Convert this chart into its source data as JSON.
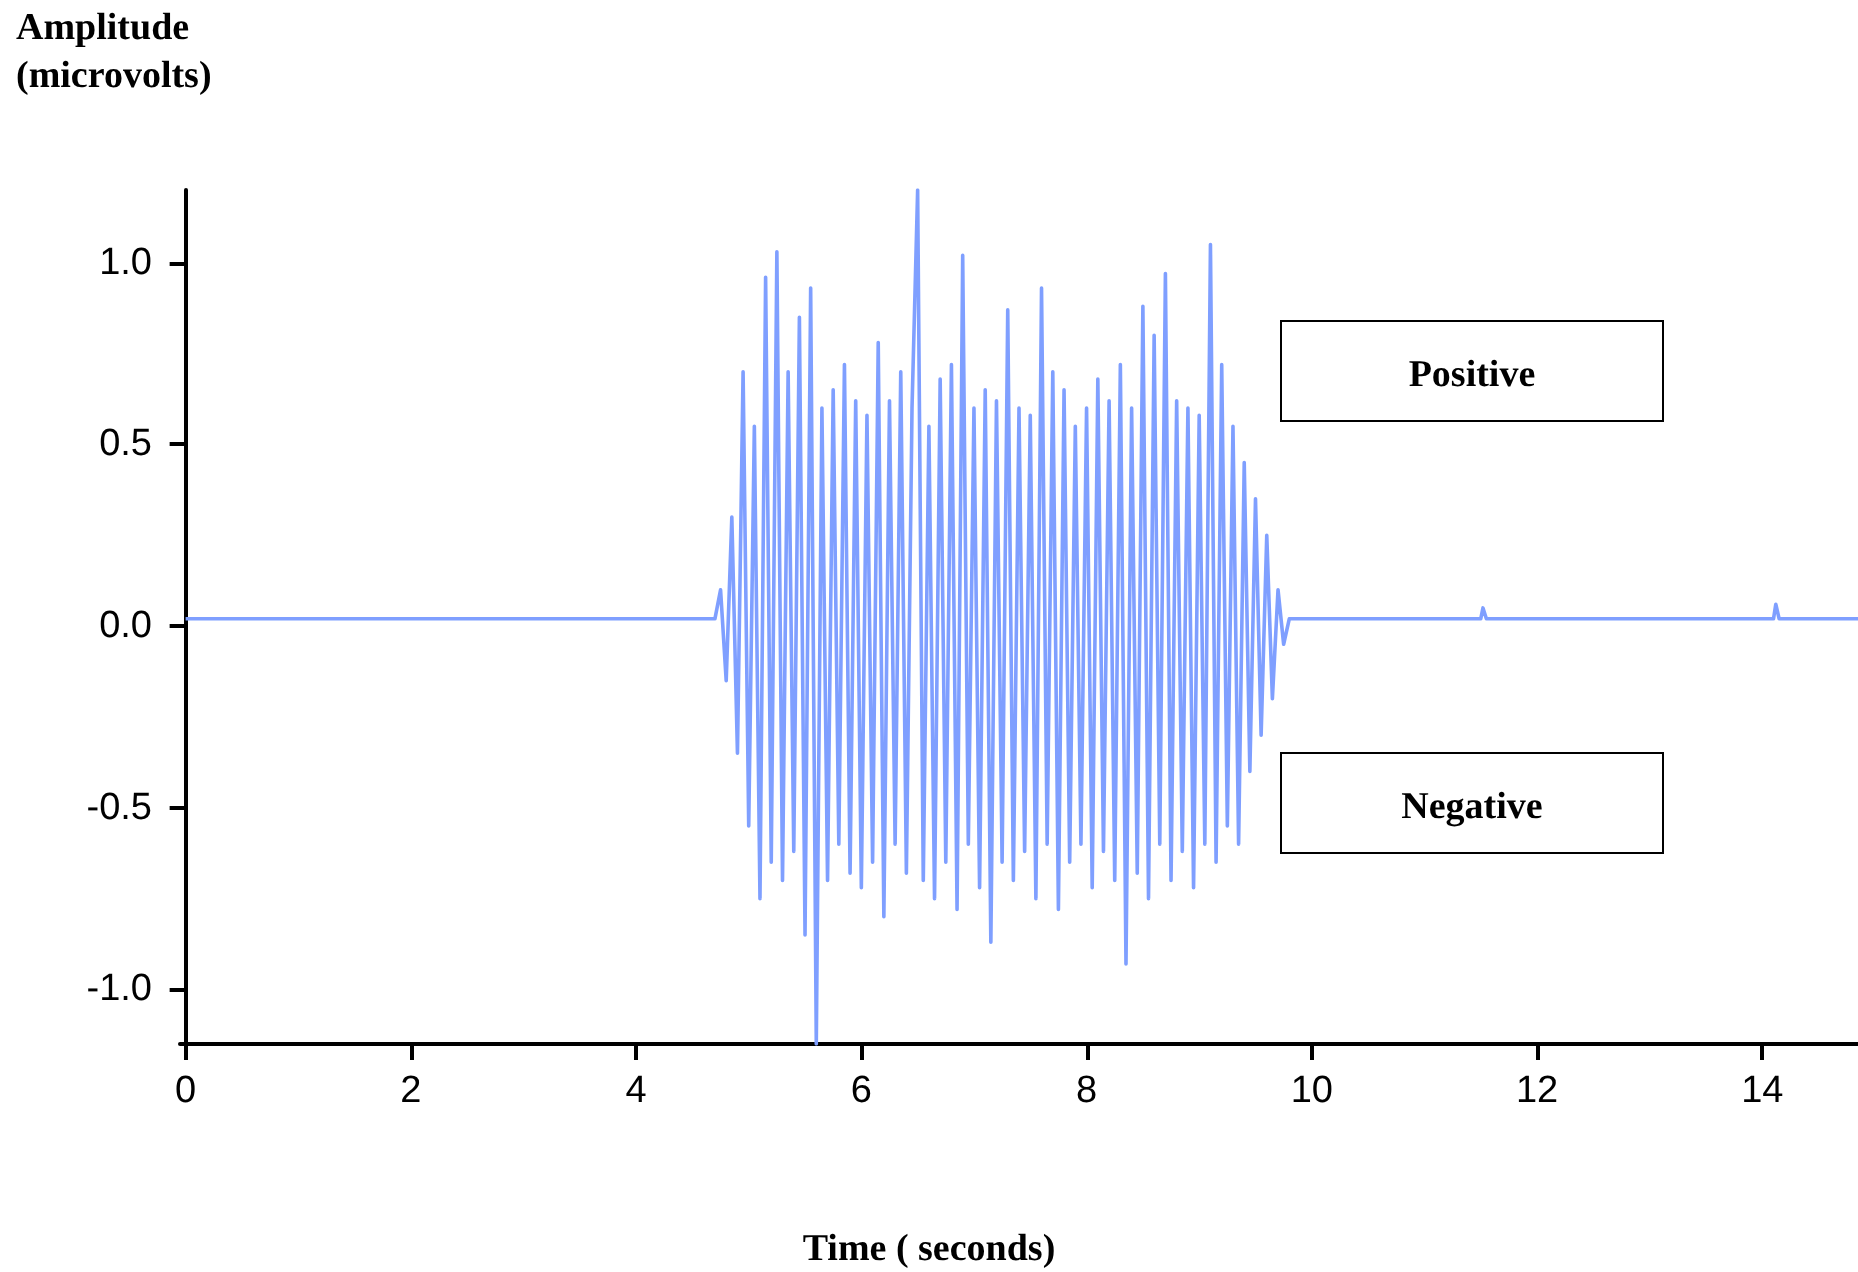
{
  "chart_data": {
    "type": "line",
    "xlabel": "Time ( seconds)",
    "ylabel": "Amplitude (microvolts)",
    "annotations": [
      "Positive",
      "Negative"
    ],
    "x": [
      0,
      4.7,
      4.75,
      4.8,
      4.85,
      4.9,
      4.95,
      5.0,
      5.05,
      5.1,
      5.15,
      5.2,
      5.25,
      5.3,
      5.35,
      5.4,
      5.45,
      5.5,
      5.55,
      5.6,
      5.65,
      5.7,
      5.75,
      5.8,
      5.85,
      5.9,
      5.95,
      6.0,
      6.05,
      6.1,
      6.15,
      6.2,
      6.25,
      6.3,
      6.35,
      6.4,
      6.45,
      6.5,
      6.55,
      6.6,
      6.65,
      6.7,
      6.75,
      6.8,
      6.85,
      6.9,
      6.95,
      7.0,
      7.05,
      7.1,
      7.15,
      7.2,
      7.25,
      7.3,
      7.35,
      7.4,
      7.45,
      7.5,
      7.55,
      7.6,
      7.65,
      7.7,
      7.75,
      7.8,
      7.85,
      7.9,
      7.95,
      8.0,
      8.05,
      8.1,
      8.15,
      8.2,
      8.25,
      8.3,
      8.35,
      8.4,
      8.45,
      8.5,
      8.55,
      8.6,
      8.65,
      8.7,
      8.75,
      8.8,
      8.85,
      8.9,
      8.95,
      9.0,
      9.05,
      9.1,
      9.15,
      9.2,
      9.25,
      9.3,
      9.35,
      9.4,
      9.45,
      9.5,
      9.55,
      9.6,
      9.65,
      9.7,
      9.75,
      9.8,
      11.5,
      11.52,
      11.55,
      14.1,
      14.12,
      14.15,
      14.85
    ],
    "series": [
      {
        "color": "#7f9fff",
        "values": [
          0.02,
          0.02,
          0.1,
          -0.15,
          0.3,
          -0.35,
          0.7,
          -0.55,
          0.55,
          -0.75,
          0.96,
          -0.65,
          1.03,
          -0.7,
          0.7,
          -0.62,
          0.85,
          -0.85,
          0.93,
          -1.15,
          0.6,
          -0.7,
          0.65,
          -0.6,
          0.72,
          -0.68,
          0.62,
          -0.72,
          0.58,
          -0.65,
          0.78,
          -0.8,
          0.62,
          -0.6,
          0.7,
          -0.68,
          0.6,
          1.2,
          -0.7,
          0.55,
          -0.75,
          0.68,
          -0.65,
          0.72,
          -0.78,
          1.02,
          -0.6,
          0.6,
          -0.72,
          0.65,
          -0.87,
          0.62,
          -0.65,
          0.87,
          -0.7,
          0.6,
          -0.62,
          0.58,
          -0.75,
          0.93,
          -0.6,
          0.7,
          -0.78,
          0.65,
          -0.65,
          0.55,
          -0.6,
          0.6,
          -0.72,
          0.68,
          -0.62,
          0.62,
          -0.7,
          0.72,
          -0.93,
          0.6,
          -0.68,
          0.88,
          -0.75,
          0.8,
          -0.6,
          0.97,
          -0.7,
          0.62,
          -0.62,
          0.6,
          -0.72,
          0.58,
          -0.6,
          1.05,
          -0.65,
          0.72,
          -0.55,
          0.55,
          -0.6,
          0.45,
          -0.4,
          0.35,
          -0.3,
          0.25,
          -0.2,
          0.1,
          -0.05,
          0.02,
          0.02,
          0.05,
          0.02,
          0.02,
          0.06,
          0.02,
          0.02
        ]
      }
    ],
    "xlim": [
      -0.05,
      14.85
    ],
    "ylim": [
      -1.15,
      1.2
    ],
    "xticks": [
      0,
      2,
      4,
      6,
      8,
      10,
      12,
      14
    ],
    "yticks": [
      {
        "value": -1,
        "label": "-1.0"
      },
      {
        "value": -0.5,
        "label": "-0.5"
      },
      {
        "value": 0,
        "label": "0.0"
      },
      {
        "value": 0.5,
        "label": "0.5"
      },
      {
        "value": 1,
        "label": "1.0"
      }
    ],
    "grid": false,
    "marker": "none",
    "line_style": "solid"
  }
}
